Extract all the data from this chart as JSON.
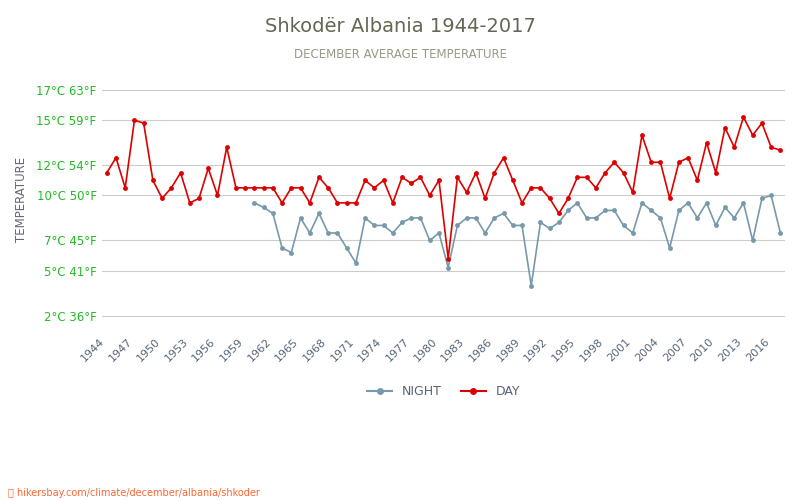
{
  "title": "Shkodër Albania 1944-2017",
  "subtitle": "DECEMBER AVERAGE TEMPERATURE",
  "ylabel": "TEMPERATURE",
  "footer": "hikersbay.com/climate/december/albania/shkoder",
  "title_color": "#666655",
  "subtitle_color": "#999988",
  "ylabel_color": "#666677",
  "ytick_color": "#22bb22",
  "xtick_color": "#556677",
  "bg_color": "#ffffff",
  "grid_color": "#cccccc",
  "day_color": "#dd0000",
  "night_color": "#7799aa",
  "years": [
    1944,
    1945,
    1946,
    1947,
    1948,
    1949,
    1950,
    1951,
    1952,
    1953,
    1954,
    1955,
    1956,
    1957,
    1958,
    1959,
    1960,
    1961,
    1962,
    1963,
    1964,
    1965,
    1966,
    1967,
    1968,
    1969,
    1970,
    1971,
    1972,
    1973,
    1974,
    1975,
    1976,
    1977,
    1978,
    1979,
    1980,
    1981,
    1982,
    1983,
    1984,
    1985,
    1986,
    1987,
    1988,
    1989,
    1990,
    1991,
    1992,
    1993,
    1994,
    1995,
    1996,
    1997,
    1998,
    1999,
    2000,
    2001,
    2002,
    2003,
    2004,
    2005,
    2006,
    2007,
    2008,
    2009,
    2010,
    2011,
    2012,
    2013,
    2014,
    2015,
    2016,
    2017
  ],
  "day": [
    11.5,
    12.5,
    10.5,
    15.0,
    14.8,
    11.0,
    9.8,
    10.5,
    11.5,
    9.5,
    9.8,
    11.8,
    10.0,
    13.2,
    10.5,
    10.5,
    10.5,
    10.5,
    10.5,
    9.5,
    10.5,
    10.5,
    9.5,
    11.2,
    10.5,
    9.5,
    9.5,
    9.5,
    11.0,
    10.5,
    11.0,
    9.5,
    11.2,
    10.8,
    11.2,
    10.0,
    11.0,
    5.8,
    11.2,
    10.2,
    11.5,
    9.8,
    11.5,
    12.5,
    11.0,
    9.5,
    10.5,
    10.5,
    9.8,
    8.8,
    9.8,
    11.2,
    11.2,
    10.5,
    11.5,
    12.2,
    11.5,
    10.2,
    14.0,
    12.2,
    12.2,
    9.8,
    12.2,
    12.5,
    11.0,
    13.5,
    11.5,
    14.5,
    13.2,
    15.2,
    14.0,
    14.8,
    13.2,
    13.0
  ],
  "night": [
    null,
    null,
    null,
    null,
    null,
    null,
    null,
    null,
    null,
    null,
    null,
    null,
    null,
    null,
    null,
    null,
    9.5,
    9.2,
    8.8,
    6.5,
    6.2,
    8.5,
    7.5,
    8.8,
    7.5,
    7.5,
    6.5,
    5.5,
    8.5,
    8.0,
    8.0,
    7.5,
    8.2,
    8.5,
    8.5,
    7.0,
    7.5,
    5.2,
    8.0,
    8.5,
    8.5,
    7.5,
    8.5,
    8.8,
    8.0,
    8.0,
    4.0,
    8.2,
    7.8,
    8.2,
    9.0,
    9.5,
    8.5,
    8.5,
    9.0,
    9.0,
    8.0,
    7.5,
    9.5,
    9.0,
    8.5,
    6.5,
    9.0,
    9.5,
    8.5,
    9.5,
    8.0,
    9.2,
    8.5,
    9.5,
    7.0,
    9.8,
    10.0,
    7.5
  ],
  "yticks_c": [
    2,
    5,
    7,
    10,
    12,
    15,
    17
  ],
  "yticks_f": [
    36,
    41,
    45,
    50,
    54,
    59,
    63
  ],
  "ymin": 1.0,
  "ymax": 18.5,
  "xmin": 1943.5,
  "xmax": 2017.5,
  "xtick_start": 1944,
  "xtick_step": 3,
  "xtick_end": 2017
}
